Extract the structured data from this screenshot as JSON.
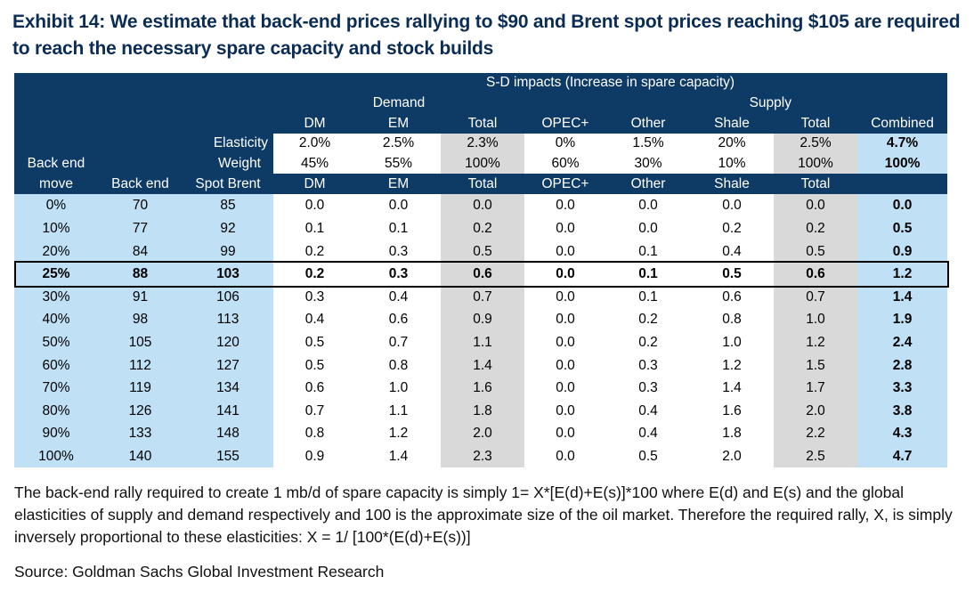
{
  "title": "Exhibit 14: We estimate that back-end prices rallying to $90 and Brent spot prices reaching $105 are required to reach the necessary spare capacity and stock builds",
  "table": {
    "header": {
      "sd_impacts": "S-D impacts (Increase in spare capacity)",
      "demand": "Demand",
      "supply": "Supply",
      "top_cols": [
        "DM",
        "EM",
        "Total",
        "OPEC+",
        "Other",
        "Shale",
        "Total",
        "Combined"
      ],
      "elasticity_label": "Elasticity",
      "elasticity": [
        "2.0%",
        "2.5%",
        "2.3%",
        "0%",
        "1.5%",
        "20%",
        "2.5%",
        "4.7%"
      ],
      "back_end_move_1": "Back end",
      "weight_label": "Weight",
      "weight": [
        "45%",
        "55%",
        "100%",
        "60%",
        "30%",
        "10%",
        "100%",
        "100%"
      ],
      "back_end_move_2": "move",
      "back_end": "Back end",
      "spot_brent": "Spot Brent",
      "bottom_cols": [
        "DM",
        "EM",
        "Total",
        "OPEC+",
        "Other",
        "Shale",
        "Total"
      ]
    },
    "rows": [
      [
        "0%",
        "70",
        "85",
        "0.0",
        "0.0",
        "0.0",
        "0.0",
        "0.0",
        "0.0",
        "0.0",
        "0.0"
      ],
      [
        "10%",
        "77",
        "92",
        "0.1",
        "0.1",
        "0.2",
        "0.0",
        "0.0",
        "0.2",
        "0.2",
        "0.5"
      ],
      [
        "20%",
        "84",
        "99",
        "0.2",
        "0.3",
        "0.5",
        "0.0",
        "0.1",
        "0.4",
        "0.5",
        "0.9"
      ],
      [
        "25%",
        "88",
        "103",
        "0.2",
        "0.3",
        "0.6",
        "0.0",
        "0.1",
        "0.5",
        "0.6",
        "1.2"
      ],
      [
        "30%",
        "91",
        "106",
        "0.3",
        "0.4",
        "0.7",
        "0.0",
        "0.1",
        "0.6",
        "0.7",
        "1.4"
      ],
      [
        "40%",
        "98",
        "113",
        "0.4",
        "0.6",
        "0.9",
        "0.0",
        "0.2",
        "0.8",
        "1.0",
        "1.9"
      ],
      [
        "50%",
        "105",
        "120",
        "0.5",
        "0.7",
        "1.1",
        "0.0",
        "0.2",
        "1.0",
        "1.2",
        "2.4"
      ],
      [
        "60%",
        "112",
        "127",
        "0.5",
        "0.8",
        "1.4",
        "0.0",
        "0.3",
        "1.2",
        "1.5",
        "2.8"
      ],
      [
        "70%",
        "119",
        "134",
        "0.6",
        "1.0",
        "1.6",
        "0.0",
        "0.3",
        "1.4",
        "1.7",
        "3.3"
      ],
      [
        "80%",
        "126",
        "141",
        "0.7",
        "1.1",
        "1.8",
        "0.0",
        "0.4",
        "1.6",
        "2.0",
        "3.8"
      ],
      [
        "90%",
        "133",
        "148",
        "0.8",
        "1.2",
        "2.0",
        "0.0",
        "0.4",
        "1.8",
        "2.2",
        "4.3"
      ],
      [
        "100%",
        "140",
        "155",
        "0.9",
        "1.4",
        "2.3",
        "0.0",
        "0.5",
        "2.0",
        "2.5",
        "4.7"
      ]
    ],
    "highlight_row": 3
  },
  "notes": "The back-end rally required to create 1 mb/d of spare capacity is simply 1= X*[E(d)+E(s)]*100 where E(d) and E(s) and the global elasticities of supply and demand respectively and 100 is the approximate size of the oil market. Therefore the required rally, X, is simply inversely proportional to these elasticities: X = 1/ [100*(E(d)+E(s))]",
  "source": "Source: Goldman Sachs Global Investment Research"
}
